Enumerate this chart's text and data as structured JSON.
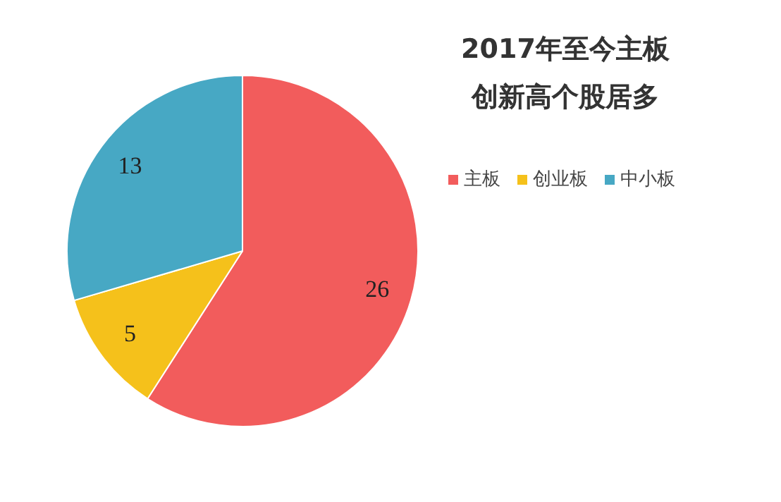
{
  "chart_data": {
    "type": "pie",
    "title": "2017年至今主板创新高个股居多",
    "categories": [
      "主板",
      "创业板",
      "中小板"
    ],
    "values": [
      26,
      5,
      13
    ],
    "colors": [
      "#f25c5c",
      "#f5c11b",
      "#47a8c4"
    ],
    "data_labels": true,
    "legend": "right"
  }
}
